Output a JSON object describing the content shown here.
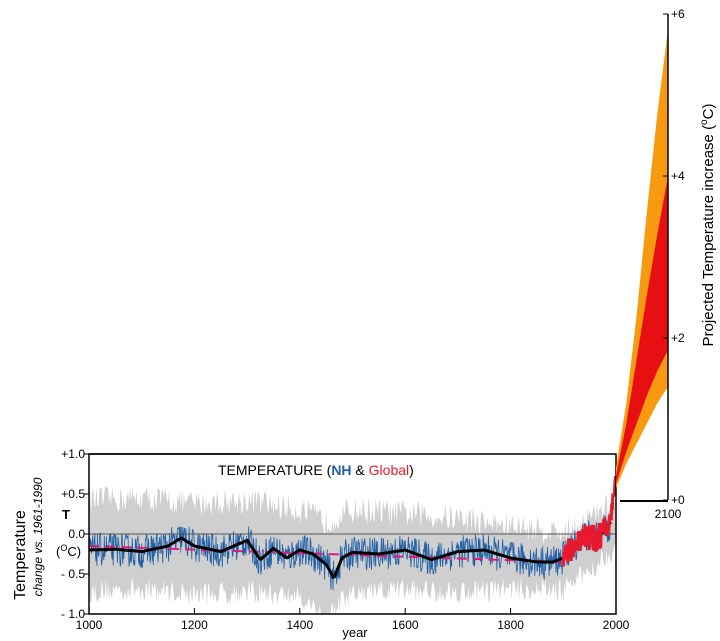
{
  "chart_data": [
    {
      "type": "line",
      "title_parts": [
        "TEMPERATURE  (",
        "NH",
        " & ",
        "Global",
        ")"
      ],
      "ylabel_main": "Temperature",
      "ylabel_sub": "change vs. 1961-1990",
      "ylabel_symbol": "T",
      "ylabel_unit": "(",
      "ylabel_unit_sup": "O",
      "ylabel_unit_end": "C)",
      "xlabel": "year",
      "xlim": [
        1000,
        2000
      ],
      "ylim": [
        -1.0,
        1.0
      ],
      "x_ticks": [
        1000,
        1200,
        1400,
        1600,
        1800,
        2000
      ],
      "x_tick_labels": [
        "1000",
        "1200",
        "1400",
        "1600",
        "1800",
        "2000"
      ],
      "y_ticks": [
        1.0,
        0.5,
        0.0,
        -0.5,
        -1.0
      ],
      "y_tick_labels": [
        "+1.0",
        "+0.5",
        "0.0",
        "- 0.5",
        "- 1.0"
      ],
      "zero_line": true,
      "colors": {
        "nh": "#1f5fa6",
        "global": "#e8192c",
        "uncertainty": "#cfcfcf",
        "smooth": "#000000",
        "trend": "#e0197d"
      },
      "series": [
        {
          "name": "NH",
          "kind": "smoothed-reconstruction",
          "x": [
            1000,
            1050,
            1100,
            1150,
            1175,
            1200,
            1250,
            1300,
            1325,
            1350,
            1375,
            1400,
            1425,
            1450,
            1465,
            1480,
            1500,
            1550,
            1600,
            1650,
            1700,
            1750,
            1800,
            1850,
            1880,
            1900,
            1920,
            1940,
            1960,
            1980,
            1990
          ],
          "y": [
            -0.2,
            -0.19,
            -0.22,
            -0.15,
            -0.05,
            -0.15,
            -0.22,
            -0.08,
            -0.32,
            -0.18,
            -0.3,
            -0.2,
            -0.25,
            -0.38,
            -0.55,
            -0.3,
            -0.23,
            -0.25,
            -0.2,
            -0.32,
            -0.22,
            -0.2,
            -0.3,
            -0.35,
            -0.35,
            -0.3,
            -0.15,
            0.0,
            -0.07,
            0.05,
            0.15
          ]
        },
        {
          "name": "Global",
          "kind": "linear-trend",
          "x": [
            1000,
            1900
          ],
          "y": [
            -0.15,
            -0.35
          ]
        }
      ],
      "uncertainty_band": {
        "x": [
          1000,
          1100,
          1200,
          1300,
          1400,
          1450,
          1500,
          1600,
          1700,
          1800,
          1900,
          1950,
          2000
        ],
        "low": [
          -0.72,
          -0.68,
          -0.75,
          -0.72,
          -0.78,
          -1.02,
          -0.75,
          -0.7,
          -0.72,
          -0.68,
          -0.7,
          -0.45,
          -0.15
        ],
        "high": [
          0.42,
          0.45,
          0.38,
          0.42,
          0.3,
          0.15,
          0.3,
          0.25,
          0.2,
          0.1,
          0.02,
          0.2,
          0.42
        ]
      }
    },
    {
      "type": "area",
      "ylabel": "Projected Temperature increase  (",
      "ylabel_sup": "o",
      "ylabel_end": "C)",
      "x_tick_label": "2100",
      "xlim": [
        2000,
        2100
      ],
      "ylim": [
        0,
        6
      ],
      "y_ticks": [
        0,
        2,
        4,
        6
      ],
      "y_tick_labels": [
        "+0",
        "+2",
        "+4",
        "+6"
      ],
      "colors": {
        "outer": "#f79a10",
        "inner": "#e80f12"
      },
      "projection_outer": {
        "x": [
          2000,
          2020,
          2040,
          2060,
          2080,
          2100
        ],
        "low": [
          0.15,
          0.45,
          0.7,
          0.95,
          1.2,
          1.4
        ],
        "high": [
          0.4,
          1.2,
          2.3,
          3.6,
          4.8,
          5.8
        ]
      },
      "projection_inner": {
        "x": [
          2000,
          2020,
          2040,
          2060,
          2080,
          2100
        ],
        "low": [
          0.2,
          0.6,
          0.95,
          1.3,
          1.6,
          1.85
        ],
        "high": [
          0.3,
          0.95,
          1.75,
          2.55,
          3.3,
          4.0
        ]
      }
    }
  ]
}
